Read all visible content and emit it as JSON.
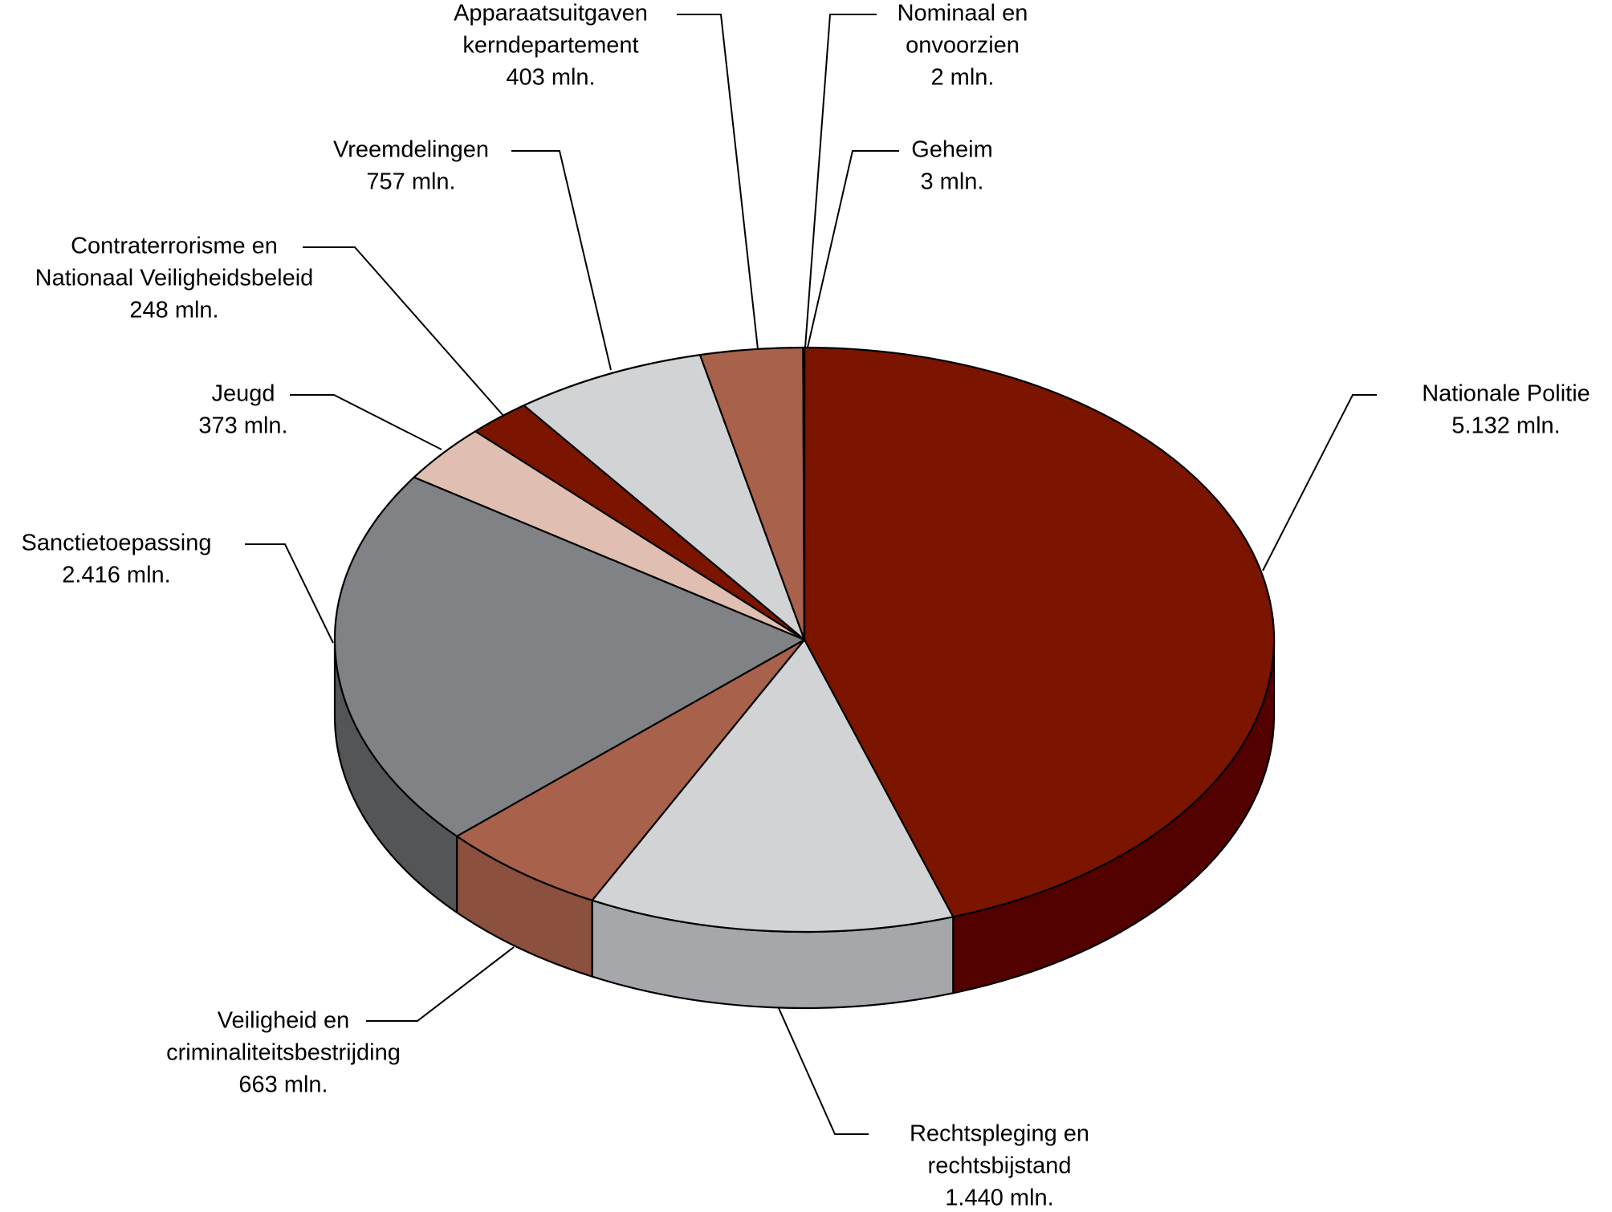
{
  "chart_data": {
    "type": "pie",
    "style": "3d",
    "slices": [
      {
        "label": "Nationale Politie",
        "value_label": "5.132 mln.",
        "value": 5132,
        "color": "#7b1500",
        "side_color": "#520000"
      },
      {
        "label": "Rechtspleging en rechtsbijstand",
        "value_label": "1.440 mln.",
        "value": 1440,
        "color": "#d2d3d5",
        "side_color": "#a6a7aa"
      },
      {
        "label": "Veiligheid en criminaliteitsbestrijding",
        "value_label": "663 mln.",
        "value": 663,
        "color": "#a8614a",
        "side_color": "#8b503e"
      },
      {
        "label": "Sanctietoepassing",
        "value_label": "2.416 mln.",
        "value": 2416,
        "color": "#818286",
        "side_color": "#545557"
      },
      {
        "label": "Jeugd",
        "value_label": "373 mln.",
        "value": 373,
        "color": "#e0bfb2",
        "side_color": "#b99d92"
      },
      {
        "label": "Contraterrorisme en Nationaal Veiligheidsbeleid",
        "value_label": "248 mln.",
        "value": 248,
        "color": "#7b1500",
        "side_color": "#520000"
      },
      {
        "label": "Vreemdelingen",
        "value_label": "757 mln.",
        "value": 757,
        "color": "#d2d3d5",
        "side_color": "#a6a7aa"
      },
      {
        "label": "Apparaatsuitgaven kerndepartement",
        "value_label": "403 mln.",
        "value": 403,
        "color": "#a8614a",
        "side_color": "#8b503e"
      },
      {
        "label": "Nominaal en onvoorzien",
        "value_label": "2 mln.",
        "value": 2,
        "color": "#7b1500",
        "side_color": "#520000"
      },
      {
        "label": "Geheim",
        "value_label": "3 mln.",
        "value": 3,
        "color": "#d2d3d5",
        "side_color": "#a6a7aa"
      }
    ]
  },
  "labels": [
    {
      "lines": [
        "Nationale Politie",
        "5.132 mln."
      ]
    },
    {
      "lines": [
        "Rechtspleging en",
        "rechtsbijstand",
        "1.440 mln."
      ]
    },
    {
      "lines": [
        "Veiligheid en",
        "criminaliteitsbestrijding",
        "663 mln."
      ]
    },
    {
      "lines": [
        "Sanctietoepassing",
        "2.416 mln."
      ]
    },
    {
      "lines": [
        "Jeugd",
        "373 mln."
      ]
    },
    {
      "lines": [
        "Contraterrorisme en",
        "Nationaal Veiligheidsbeleid",
        "248 mln."
      ]
    },
    {
      "lines": [
        "Vreemdelingen",
        "757 mln."
      ]
    },
    {
      "lines": [
        "Apparaatsuitgaven",
        "kerndepartement",
        "403 mln."
      ]
    },
    {
      "lines": [
        "Nominaal en",
        "onvoorzien",
        "2 mln."
      ]
    },
    {
      "lines": [
        "Geheim",
        "3 mln."
      ]
    }
  ]
}
